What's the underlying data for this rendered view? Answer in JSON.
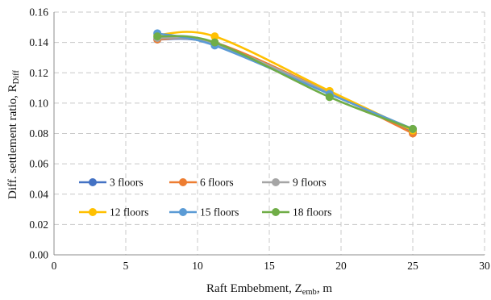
{
  "chart_data": {
    "type": "line",
    "xlabel": {
      "main": "Raft Embebment, Z",
      "sub": "emb",
      "tail": ", m"
    },
    "ylabel": {
      "main": "Diff. settlement ratio, R",
      "sub": "Diff",
      "tail": ""
    },
    "xlim": [
      0,
      30
    ],
    "ylim": [
      0,
      0.16
    ],
    "xticks": [
      0,
      5,
      10,
      15,
      20,
      25,
      30
    ],
    "yticks": [
      0.0,
      0.02,
      0.04,
      0.06,
      0.08,
      0.1,
      0.12,
      0.14,
      0.16
    ],
    "xtick_labels": [
      "0",
      "5",
      "10",
      "15",
      "20",
      "25",
      "30"
    ],
    "ytick_labels": [
      "0.00",
      "0.02",
      "0.04",
      "0.06",
      "0.08",
      "0.10",
      "0.12",
      "0.14",
      "0.16"
    ],
    "grid": "dashed",
    "legend_placement": "lower-left",
    "x": [
      7.2,
      11.2,
      19.2,
      25.0
    ],
    "series": [
      {
        "name": "3 floors",
        "color": "#4472C4",
        "values": [
          0.142,
          0.139,
          0.107,
          0.081
        ]
      },
      {
        "name": "6 floors",
        "color": "#ED7D31",
        "values": [
          0.142,
          0.14,
          0.107,
          0.08
        ]
      },
      {
        "name": "9 floors",
        "color": "#A5A5A5",
        "values": [
          0.143,
          0.139,
          0.107,
          0.082
        ]
      },
      {
        "name": "12 floors",
        "color": "#FFC000",
        "values": [
          0.145,
          0.144,
          0.108,
          0.082
        ]
      },
      {
        "name": "15 floors",
        "color": "#5B9BD5",
        "values": [
          0.146,
          0.138,
          0.106,
          0.083
        ]
      },
      {
        "name": "18 floors",
        "color": "#70AD47",
        "values": [
          0.144,
          0.14,
          0.104,
          0.083
        ]
      }
    ]
  }
}
